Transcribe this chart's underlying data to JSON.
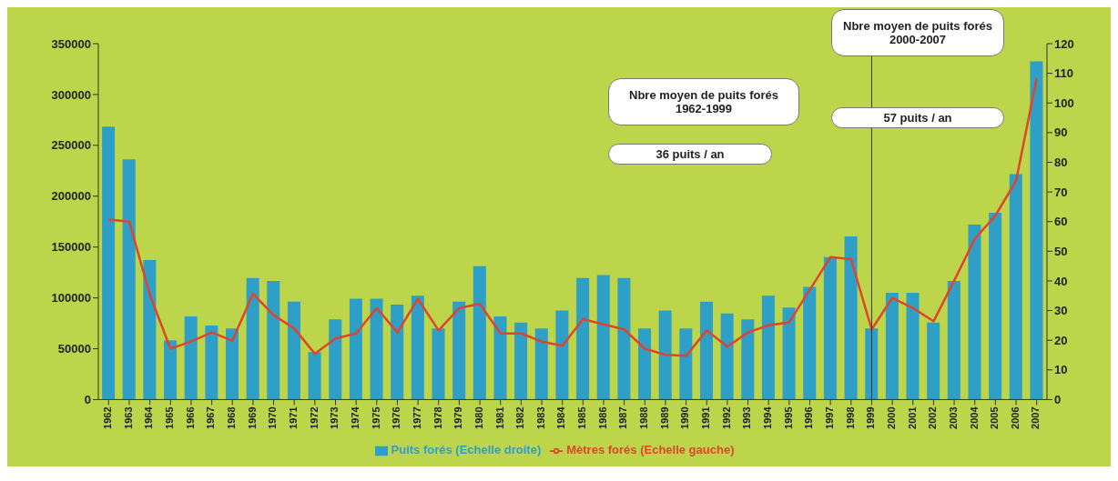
{
  "chart_data": {
    "type": "bar",
    "categories": [
      "1962",
      "1963",
      "1964",
      "1965",
      "1966",
      "1967",
      "1968",
      "1969",
      "1970",
      "1971",
      "1972",
      "1973",
      "1974",
      "1975",
      "1976",
      "1977",
      "1978",
      "1979",
      "1980",
      "1981",
      "1982",
      "1983",
      "1984",
      "1985",
      "1986",
      "1987",
      "1988",
      "1989",
      "1990",
      "1991",
      "1992",
      "1993",
      "1994",
      "1995",
      "1996",
      "1997",
      "1998",
      "1999",
      "2000",
      "2001",
      "2002",
      "2003",
      "2004",
      "2005",
      "2006",
      "2007"
    ],
    "series": [
      {
        "name": "Puits forés (Echelle droite)",
        "axis": "y2",
        "color": "#2e9fc7",
        "values": [
          92,
          81,
          47,
          20,
          28,
          25,
          24,
          41,
          40,
          33,
          16,
          27,
          34,
          34,
          32,
          35,
          24,
          33,
          45,
          28,
          26,
          24,
          30,
          41,
          42,
          41,
          24,
          30,
          24,
          33,
          29,
          27,
          35,
          31,
          38,
          48,
          55,
          24,
          36,
          36,
          26,
          40,
          59,
          63,
          76,
          114
        ]
      },
      {
        "name": "Mètres forés (Echelle gauche)",
        "type": "line",
        "color": "#e0452c",
        "values": [
          177000,
          175000,
          103000,
          50000,
          57000,
          66000,
          58000,
          104000,
          83000,
          70000,
          45000,
          60000,
          65000,
          90000,
          66000,
          99000,
          68000,
          90000,
          94000,
          65000,
          65000,
          57000,
          53000,
          79000,
          74000,
          69000,
          50000,
          44000,
          43000,
          68000,
          52000,
          66000,
          73000,
          76000,
          108000,
          140000,
          138000,
          69000,
          100000,
          90000,
          77000,
          117000,
          158000,
          181000,
          215000,
          316000
        ]
      }
    ],
    "ylim": [
      0,
      350000
    ],
    "yticks": [
      0,
      50000,
      100000,
      150000,
      200000,
      250000,
      300000,
      350000
    ],
    "y2lim": [
      0,
      120
    ],
    "y2ticks": [
      0,
      10,
      20,
      30,
      40,
      50,
      60,
      70,
      80,
      90,
      100,
      110,
      120
    ],
    "ref_lines": [
      {
        "axis": "x",
        "value": "1999",
        "color": "#333333"
      }
    ],
    "annotations": [
      "Nbre moyen de puits forés 1962-1999",
      "36 puits / an",
      "Nbre moyen de puits forés 2000-2007",
      "57 puits / an"
    ],
    "legend": "bottom",
    "grid": false,
    "marker": "none",
    "line_style": "solid"
  }
}
